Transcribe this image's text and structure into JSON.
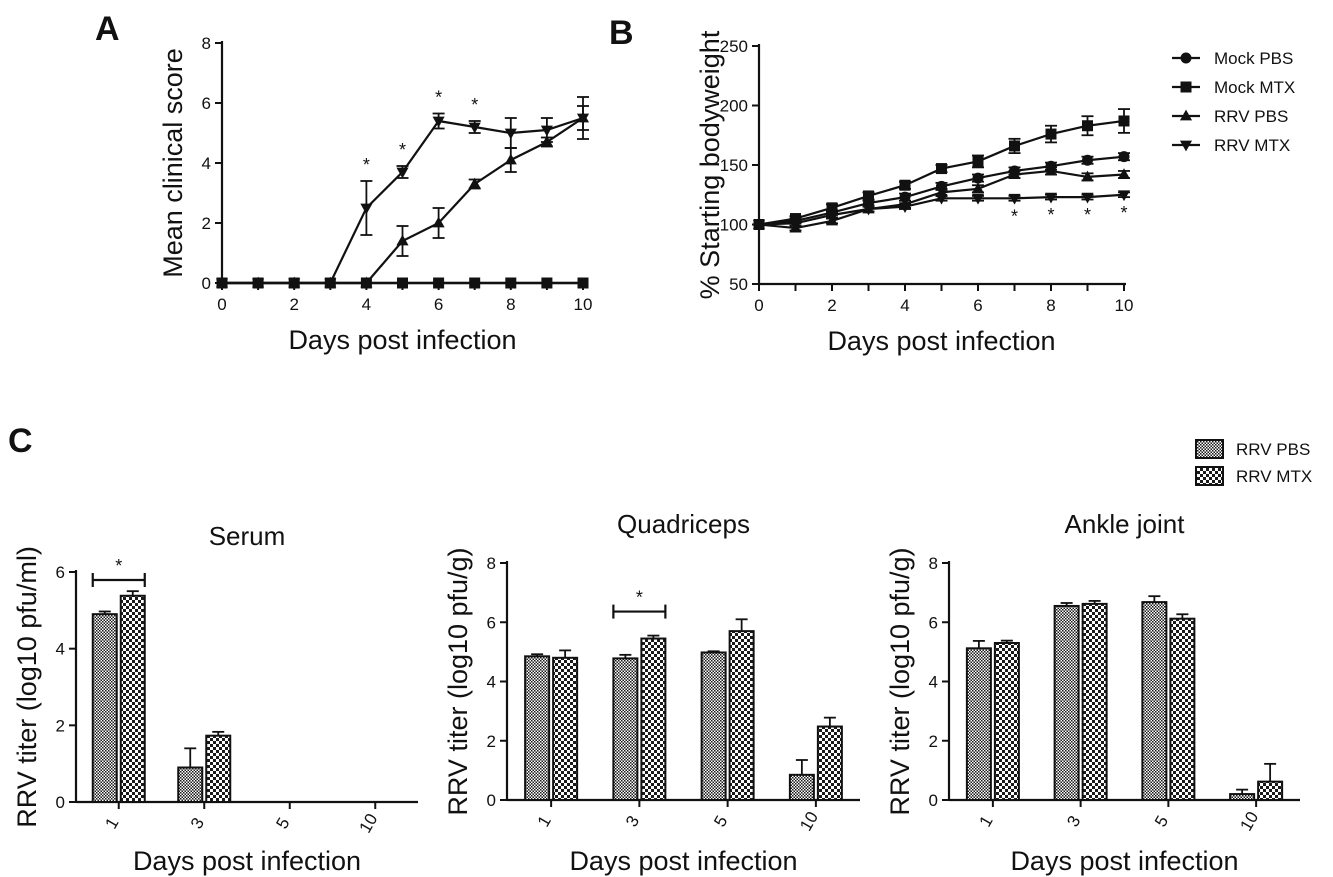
{
  "panels": {
    "a": "A",
    "b": "B",
    "c": "C"
  },
  "legend_line": [
    "Mock PBS",
    "Mock MTX",
    "RRV PBS",
    "RRV MTX"
  ],
  "legend_bar": [
    "RRV PBS",
    "RRV MTX"
  ],
  "chart_data": [
    {
      "id": "A",
      "type": "line",
      "title": "",
      "xlabel": "Days post infection",
      "ylabel": "Mean clinical score",
      "xlim": [
        0,
        10
      ],
      "ylim": [
        0,
        8
      ],
      "xticks": [
        0,
        2,
        4,
        6,
        8,
        10
      ],
      "yticks": [
        0,
        2,
        4,
        6,
        8
      ],
      "series": [
        {
          "name": "Mock PBS",
          "marker": "circle",
          "x": [
            0,
            1,
            2,
            3,
            4,
            5,
            6,
            7,
            8,
            9,
            10
          ],
          "y": [
            0,
            0,
            0,
            0,
            0,
            0,
            0,
            0,
            0,
            0,
            0
          ],
          "err": [
            0,
            0,
            0,
            0,
            0,
            0,
            0,
            0,
            0,
            0,
            0
          ]
        },
        {
          "name": "Mock MTX",
          "marker": "square",
          "x": [
            0,
            1,
            2,
            3,
            4,
            5,
            6,
            7,
            8,
            9,
            10
          ],
          "y": [
            0,
            0,
            0,
            0,
            0,
            0,
            0,
            0,
            0,
            0,
            0
          ],
          "err": [
            0,
            0,
            0,
            0,
            0,
            0,
            0,
            0,
            0,
            0,
            0
          ]
        },
        {
          "name": "RRV PBS",
          "marker": "triangle-up",
          "x": [
            0,
            1,
            2,
            3,
            4,
            5,
            6,
            7,
            8,
            9,
            10
          ],
          "y": [
            0,
            0,
            0,
            0,
            0,
            1.4,
            2.0,
            3.3,
            4.1,
            4.7,
            5.5
          ],
          "err": [
            0,
            0,
            0,
            0,
            0,
            0.5,
            0.5,
            0.15,
            0.4,
            0.15,
            0.7
          ]
        },
        {
          "name": "RRV MTX",
          "marker": "triangle-down",
          "x": [
            0,
            1,
            2,
            3,
            4,
            5,
            6,
            7,
            8,
            9,
            10
          ],
          "y": [
            0,
            0,
            0,
            0,
            2.5,
            3.7,
            5.4,
            5.2,
            5.0,
            5.1,
            5.5
          ],
          "err": [
            0,
            0,
            0,
            0,
            0.9,
            0.2,
            0.25,
            0.2,
            0.5,
            0.4,
            0.4
          ]
        }
      ],
      "significance_x": [
        4,
        5,
        6,
        7
      ],
      "significance_label": "*"
    },
    {
      "id": "B",
      "type": "line",
      "title": "",
      "xlabel": "Days post infection",
      "ylabel": "% Starting bodyweight",
      "xlim": [
        0,
        10
      ],
      "ylim": [
        50,
        250
      ],
      "xticks": [
        0,
        2,
        4,
        6,
        8,
        10
      ],
      "yticks": [
        50,
        100,
        150,
        200,
        250
      ],
      "series": [
        {
          "name": "Mock PBS",
          "marker": "circle",
          "x": [
            0,
            1,
            2,
            3,
            4,
            5,
            6,
            7,
            8,
            9,
            10
          ],
          "y": [
            100,
            103,
            110,
            118,
            123,
            132,
            139,
            145,
            149,
            154,
            157
          ],
          "err": [
            0,
            2,
            2,
            2,
            3,
            3,
            3,
            3,
            3,
            3,
            3
          ]
        },
        {
          "name": "Mock MTX",
          "marker": "square",
          "x": [
            0,
            1,
            2,
            3,
            4,
            5,
            6,
            7,
            8,
            9,
            10
          ],
          "y": [
            100,
            105,
            114,
            124,
            133,
            147,
            153,
            166,
            176,
            183,
            187
          ],
          "err": [
            0,
            2,
            3,
            3,
            3,
            3,
            5,
            6,
            7,
            8,
            10
          ]
        },
        {
          "name": "RRV PBS",
          "marker": "triangle-up",
          "x": [
            0,
            1,
            2,
            3,
            4,
            5,
            6,
            7,
            8,
            9,
            10
          ],
          "y": [
            100,
            97,
            103,
            113,
            117,
            127,
            130,
            142,
            145,
            140,
            142
          ],
          "err": [
            0,
            2,
            2,
            2,
            3,
            3,
            3,
            3,
            3,
            3,
            3
          ]
        },
        {
          "name": "RRV MTX",
          "marker": "triangle-down",
          "x": [
            0,
            1,
            2,
            3,
            4,
            5,
            6,
            7,
            8,
            9,
            10
          ],
          "y": [
            100,
            101,
            108,
            113,
            115,
            122,
            122,
            122,
            123,
            123,
            125
          ],
          "err": [
            0,
            2,
            2,
            2,
            2,
            2,
            2,
            2,
            2,
            2,
            2
          ]
        }
      ],
      "significance_x": [
        7,
        8,
        9,
        10
      ],
      "significance_label": "*"
    },
    {
      "id": "C-serum",
      "type": "bar",
      "title": "Serum",
      "xlabel": "Days post infection",
      "ylabel": "RRV titer (log10 pfu/ml)",
      "categories": [
        "1",
        "3",
        "5",
        "10"
      ],
      "ylim": [
        0,
        6
      ],
      "yticks": [
        0,
        2,
        4,
        6
      ],
      "series": [
        {
          "name": "RRV PBS",
          "values": [
            4.9,
            0.9,
            0,
            0
          ],
          "err": [
            0.07,
            0.5,
            0,
            0
          ]
        },
        {
          "name": "RRV MTX",
          "values": [
            5.38,
            1.73,
            0,
            0
          ],
          "err": [
            0.12,
            0.1,
            0,
            0
          ]
        }
      ],
      "significance": {
        "category": "1",
        "label": "*"
      }
    },
    {
      "id": "C-quadriceps",
      "type": "bar",
      "title": "Quadriceps",
      "xlabel": "Days post infection",
      "ylabel": "RRV titer (log10 pfu/g)",
      "categories": [
        "1",
        "3",
        "5",
        "10"
      ],
      "ylim": [
        0,
        8
      ],
      "yticks": [
        0,
        2,
        4,
        6,
        8
      ],
      "series": [
        {
          "name": "RRV PBS",
          "values": [
            4.85,
            4.78,
            4.98,
            0.85
          ],
          "err": [
            0.07,
            0.12,
            0.04,
            0.5
          ]
        },
        {
          "name": "RRV MTX",
          "values": [
            4.8,
            5.45,
            5.7,
            2.48
          ],
          "err": [
            0.25,
            0.1,
            0.4,
            0.3
          ]
        }
      ],
      "significance": {
        "category": "3",
        "label": "*"
      }
    },
    {
      "id": "C-ankle",
      "type": "bar",
      "title": "Ankle joint",
      "xlabel": "Days post infection",
      "ylabel": "RRV titer (log10 pfu/g)",
      "categories": [
        "1",
        "3",
        "5",
        "10"
      ],
      "ylim": [
        0,
        8
      ],
      "yticks": [
        0,
        2,
        4,
        6,
        8
      ],
      "series": [
        {
          "name": "RRV PBS",
          "values": [
            5.12,
            6.55,
            6.68,
            0.2
          ],
          "err": [
            0.25,
            0.1,
            0.2,
            0.15
          ]
        },
        {
          "name": "RRV MTX",
          "values": [
            5.3,
            6.62,
            6.12,
            0.62
          ],
          "err": [
            0.08,
            0.1,
            0.15,
            0.6
          ]
        }
      ],
      "significance": null
    }
  ]
}
